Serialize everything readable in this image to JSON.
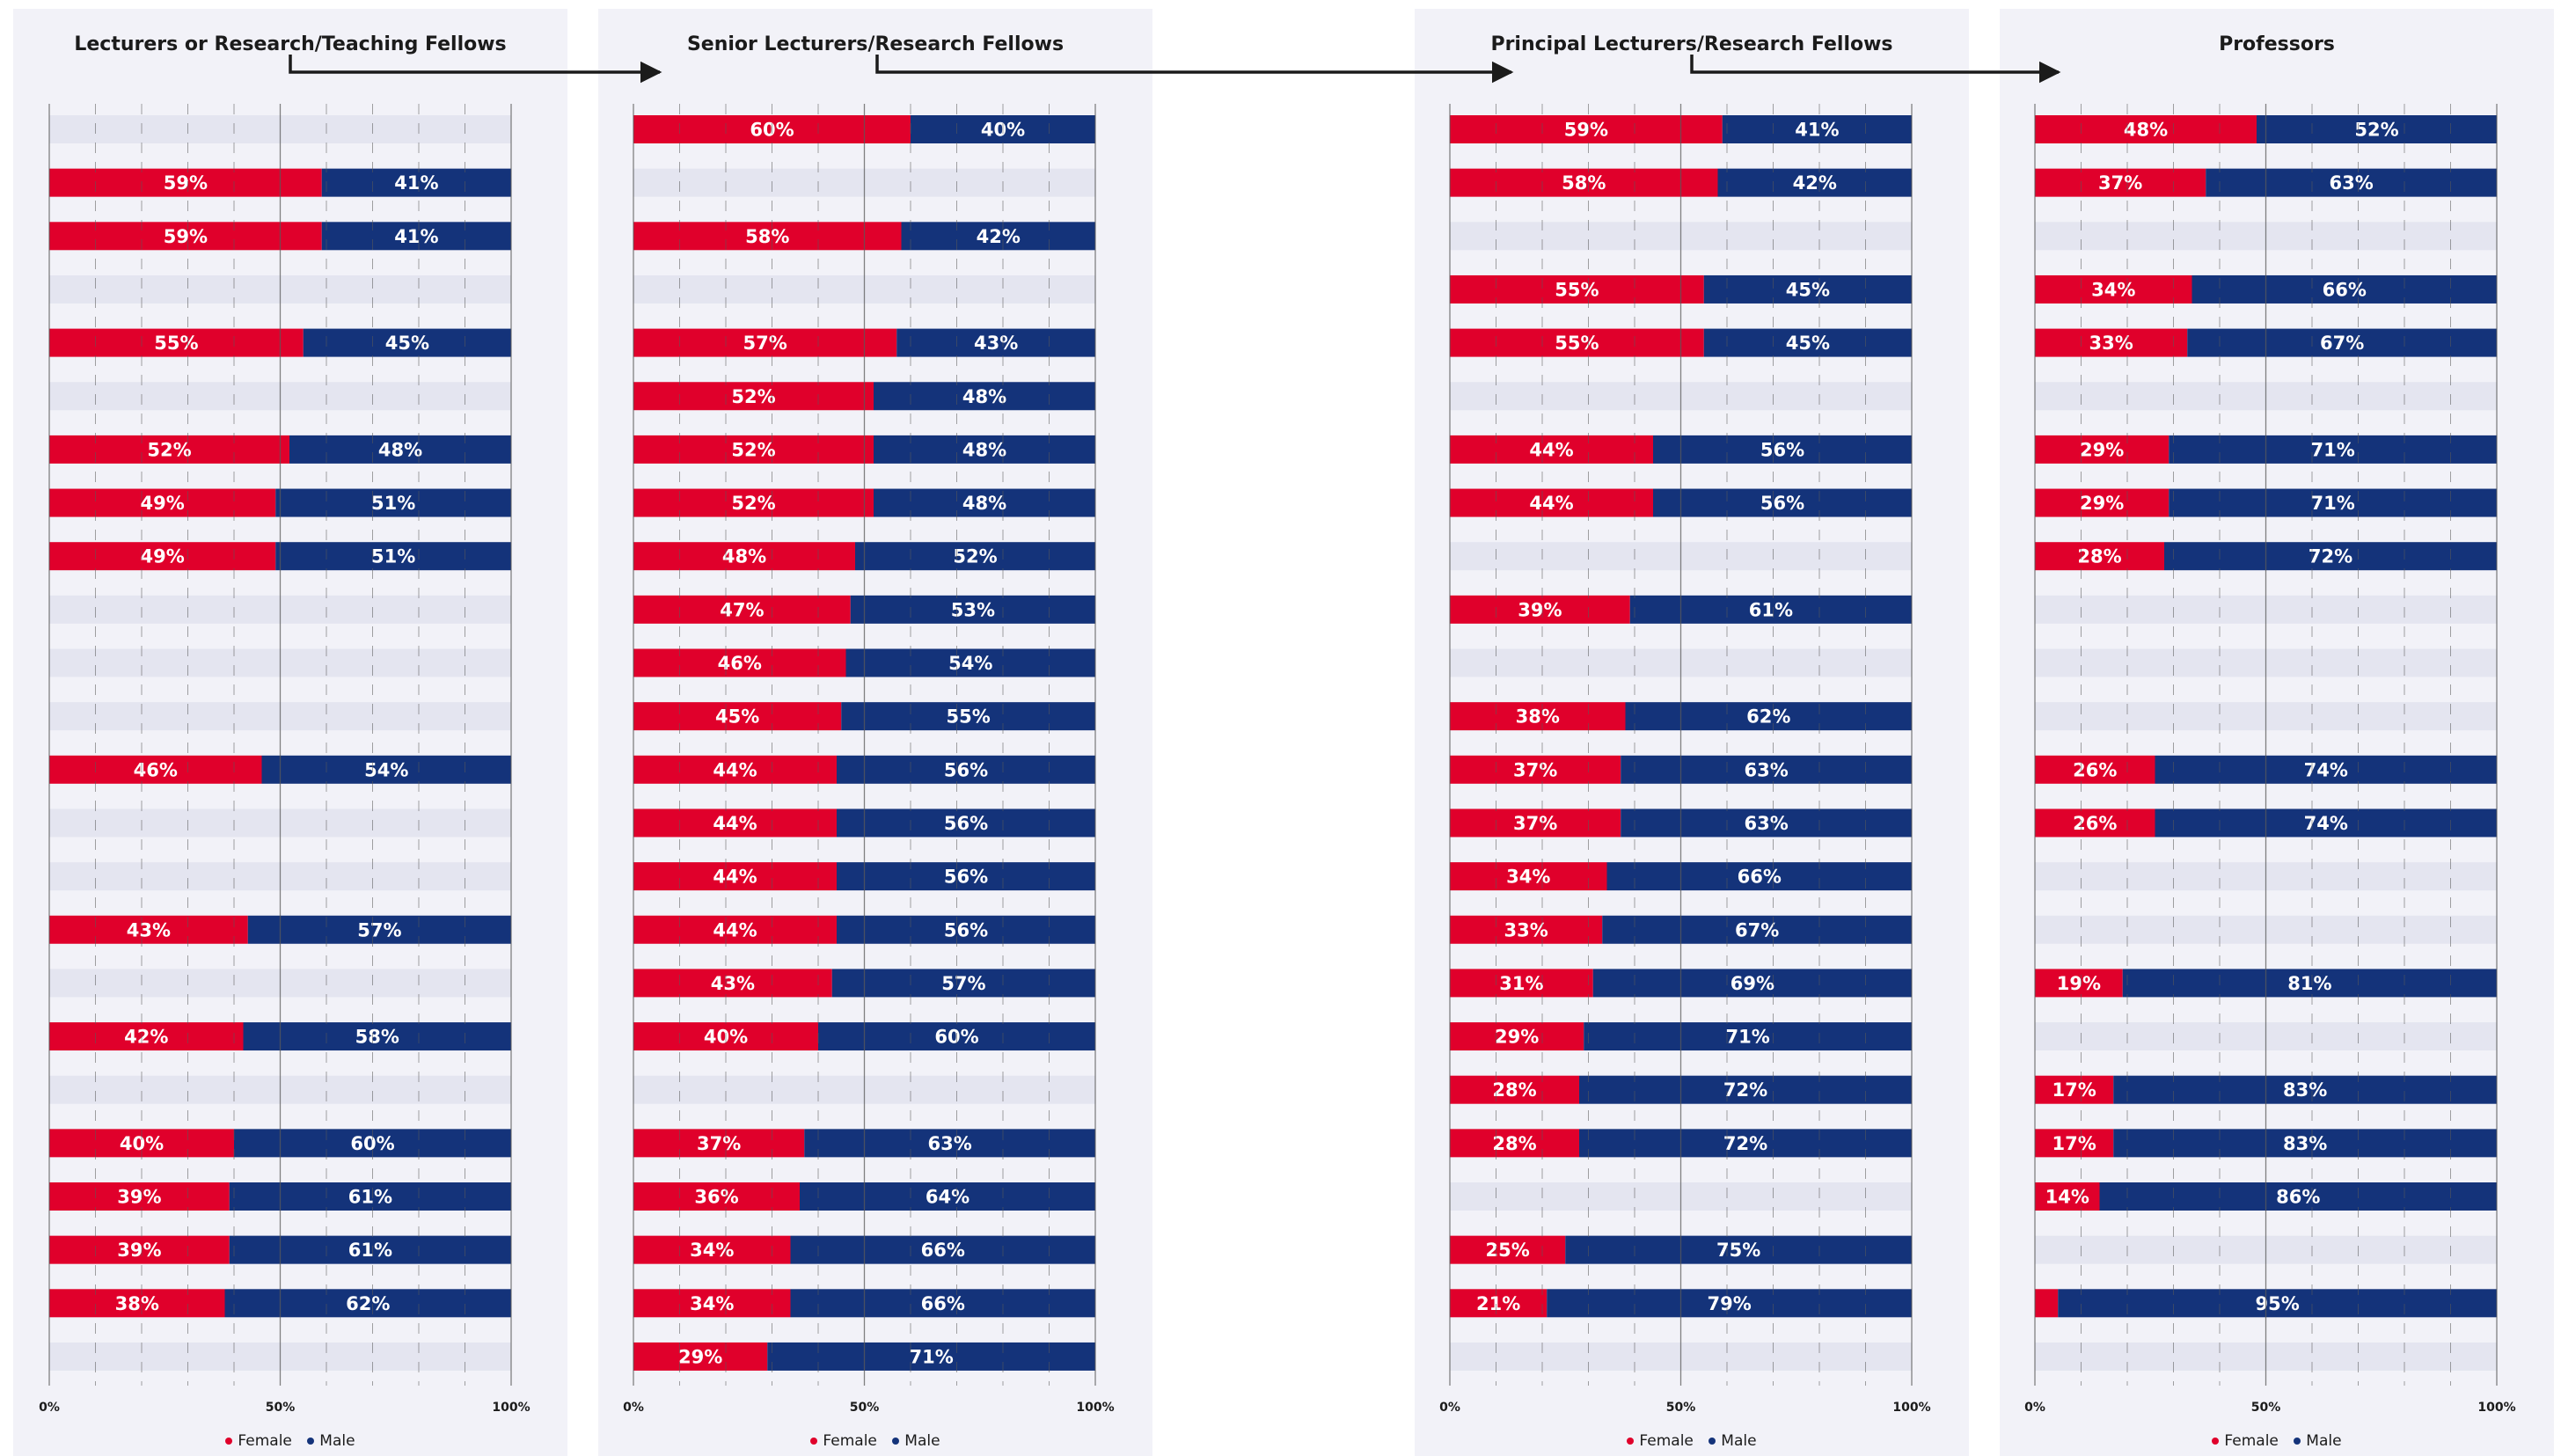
{
  "colors": {
    "female": "#e0002b",
    "male": "#14337a",
    "row_empty": "#e4e5f0",
    "grid": "#5a5a5a",
    "panel_bg": "#f2f2f8"
  },
  "legend": {
    "female": "Female",
    "male": "Male"
  },
  "chart_data": [
    {
      "type": "bar",
      "orientation": "horizontal-stacked-100",
      "title": "Lecturers or Research/Teaching Fellows",
      "xlim": [
        0,
        100
      ],
      "xticks": [
        "0%",
        "50%",
        "100%"
      ],
      "grid": true,
      "legend_position": "bottom",
      "series": [
        {
          "name": "Female"
        },
        {
          "name": "Male"
        }
      ],
      "female": [
        null,
        59,
        59,
        null,
        55,
        null,
        52,
        49,
        49,
        null,
        null,
        null,
        46,
        null,
        null,
        43,
        null,
        42,
        null,
        40,
        39,
        39,
        38,
        null
      ],
      "male": [
        null,
        41,
        41,
        null,
        45,
        null,
        48,
        51,
        51,
        null,
        null,
        null,
        54,
        null,
        null,
        57,
        null,
        58,
        null,
        60,
        61,
        61,
        62,
        null
      ],
      "female_labels": [
        "",
        "59%",
        "59%",
        "",
        "55%",
        "",
        "52%",
        "49%",
        "49%",
        "",
        "",
        "",
        "46%",
        "",
        "",
        "43%",
        "",
        "42%",
        "",
        "40%",
        "39%",
        "39%",
        "38%",
        ""
      ],
      "male_labels": [
        "",
        "41%",
        "41%",
        "",
        "45%",
        "",
        "48%",
        "51%",
        "51%",
        "",
        "",
        "",
        "54%",
        "",
        "",
        "57%",
        "",
        "58%",
        "",
        "60%",
        "61%",
        "61%",
        "62%",
        ""
      ]
    },
    {
      "type": "bar",
      "orientation": "horizontal-stacked-100",
      "title": "Senior Lecturers/Research Fellows",
      "xlim": [
        0,
        100
      ],
      "xticks": [
        "0%",
        "50%",
        "100%"
      ],
      "grid": true,
      "legend_position": "bottom",
      "series": [
        {
          "name": "Female"
        },
        {
          "name": "Male"
        }
      ],
      "female": [
        60,
        null,
        58,
        null,
        57,
        52,
        52,
        52,
        48,
        47,
        46,
        45,
        44,
        44,
        44,
        44,
        43,
        40,
        null,
        37,
        36,
        34,
        34,
        29
      ],
      "male": [
        40,
        null,
        42,
        null,
        43,
        48,
        48,
        48,
        52,
        53,
        54,
        55,
        56,
        56,
        56,
        56,
        57,
        60,
        null,
        63,
        64,
        66,
        66,
        71
      ],
      "female_labels": [
        "60%",
        "",
        "58%",
        "",
        "57%",
        "52%",
        "52%",
        "52%",
        "48%",
        "47%",
        "46%",
        "45%",
        "44%",
        "44%",
        "44%",
        "44%",
        "43%",
        "40%",
        "",
        "37%",
        "36%",
        "34%",
        "34%",
        "29%"
      ],
      "male_labels": [
        "40%",
        "",
        "42%",
        "",
        "43%",
        "48%",
        "48%",
        "48%",
        "52%",
        "53%",
        "54%",
        "55%",
        "56%",
        "56%",
        "56%",
        "56%",
        "57%",
        "60%",
        "",
        "63%",
        "64%",
        "66%",
        "66%",
        "71%"
      ]
    },
    {
      "type": "bar",
      "orientation": "horizontal-stacked-100",
      "title": "Principal Lecturers/Research Fellows",
      "xlim": [
        0,
        100
      ],
      "xticks": [
        "0%",
        "50%",
        "100%"
      ],
      "grid": true,
      "legend_position": "bottom",
      "series": [
        {
          "name": "Female"
        },
        {
          "name": "Male"
        }
      ],
      "female": [
        59,
        58,
        null,
        55,
        55,
        null,
        44,
        44,
        null,
        39,
        null,
        38,
        37,
        37,
        34,
        33,
        31,
        29,
        28,
        28,
        null,
        25,
        21,
        null
      ],
      "male": [
        41,
        42,
        null,
        45,
        45,
        null,
        56,
        56,
        null,
        61,
        null,
        62,
        63,
        63,
        66,
        67,
        69,
        71,
        72,
        72,
        null,
        75,
        79,
        null
      ],
      "female_labels": [
        "59%",
        "58%",
        "",
        "55%",
        "55%",
        "",
        "44%",
        "44%",
        "",
        "39%",
        "",
        "38%",
        "37%",
        "37%",
        "34%",
        "33%",
        "31%",
        "29%",
        "28%",
        "28%",
        "",
        "25%",
        "21%",
        ""
      ],
      "male_labels": [
        "41%",
        "42%",
        "",
        "45%",
        "45%",
        "",
        "56%",
        "56%",
        "",
        "61%",
        "",
        "62%",
        "63%",
        "63%",
        "66%",
        "67%",
        "69%",
        "71%",
        "72%",
        "72%",
        "",
        "75%",
        "79%",
        ""
      ]
    },
    {
      "type": "bar",
      "orientation": "horizontal-stacked-100",
      "title": "Professors",
      "xlim": [
        0,
        100
      ],
      "xticks": [
        "0%",
        "50%",
        "100%"
      ],
      "grid": true,
      "legend_position": "bottom",
      "series": [
        {
          "name": "Female"
        },
        {
          "name": "Male"
        }
      ],
      "female": [
        48,
        37,
        null,
        34,
        33,
        null,
        29,
        29,
        28,
        null,
        null,
        null,
        26,
        26,
        null,
        null,
        19,
        null,
        17,
        17,
        14,
        null,
        5,
        null
      ],
      "male": [
        52,
        63,
        null,
        66,
        67,
        null,
        71,
        71,
        72,
        null,
        null,
        null,
        74,
        74,
        null,
        null,
        81,
        null,
        83,
        83,
        86,
        null,
        95,
        null
      ],
      "female_labels": [
        "48%",
        "37%",
        "",
        "34%",
        "33%",
        "",
        "29%",
        "29%",
        "28%",
        "",
        "",
        "",
        "26%",
        "26%",
        "",
        "",
        "19%",
        "",
        "17%",
        "17%",
        "14%",
        "",
        "",
        ""
      ],
      "male_labels": [
        "52%",
        "63%",
        "",
        "66%",
        "67%",
        "",
        "71%",
        "71%",
        "72%",
        "",
        "",
        "",
        "74%",
        "74%",
        "",
        "",
        "81%",
        "",
        "83%",
        "83%",
        "86%",
        "",
        "95%",
        ""
      ]
    }
  ]
}
